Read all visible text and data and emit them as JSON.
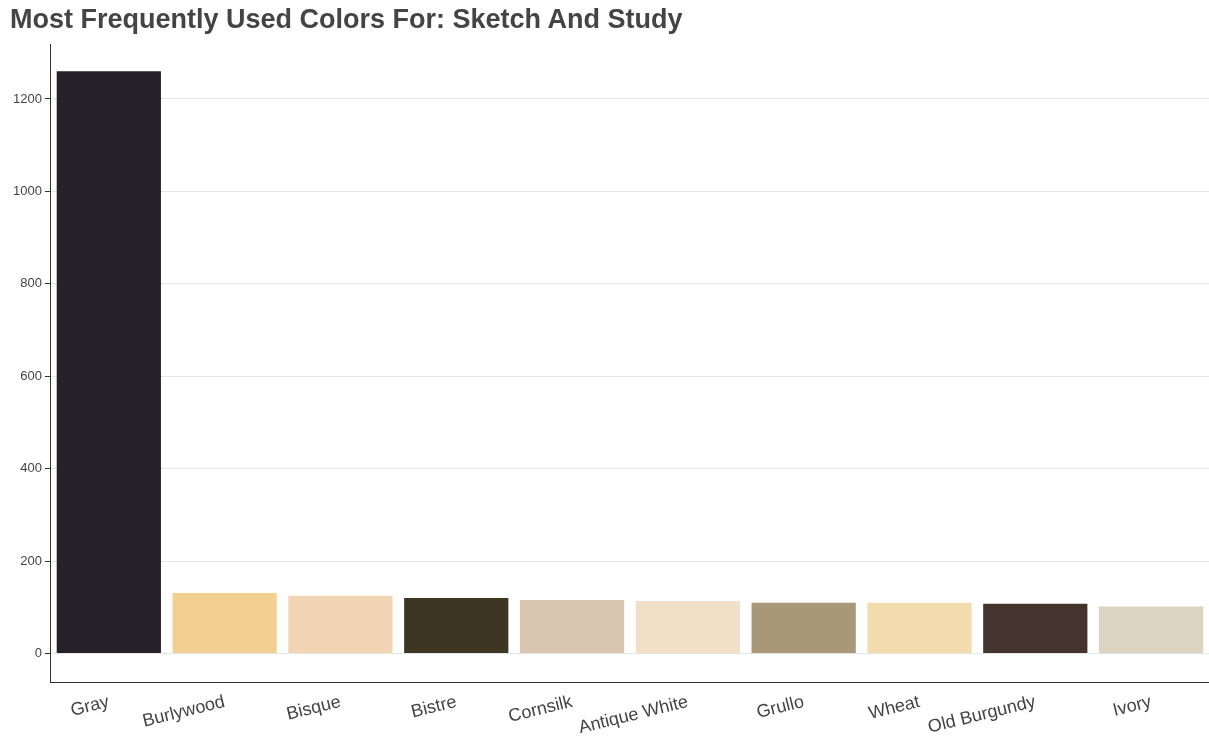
{
  "chart_data": {
    "type": "bar",
    "title": "Most Frequently Used Colors For: Sketch And Study",
    "categories": [
      "Gray",
      "Burlywood",
      "Bisque",
      "Bistre",
      "Cornsilk",
      "Antique White",
      "Grullo",
      "Wheat",
      "Old Burgundy",
      "Ivory"
    ],
    "values": [
      1260,
      131,
      125,
      120,
      116,
      114,
      110,
      110,
      108,
      102
    ],
    "colors": [
      "#262129",
      "#f2d091",
      "#f2d5b5",
      "#3f3523",
      "#d9c6b0",
      "#f2dfc7",
      "#a89877",
      "#f2dbad",
      "#43352e",
      "#dcd4c0"
    ],
    "ylim": [
      -62,
      1318
    ],
    "yticks": [
      0,
      200,
      400,
      600,
      800,
      1000,
      1200
    ],
    "grid": "y",
    "legend": false
  }
}
